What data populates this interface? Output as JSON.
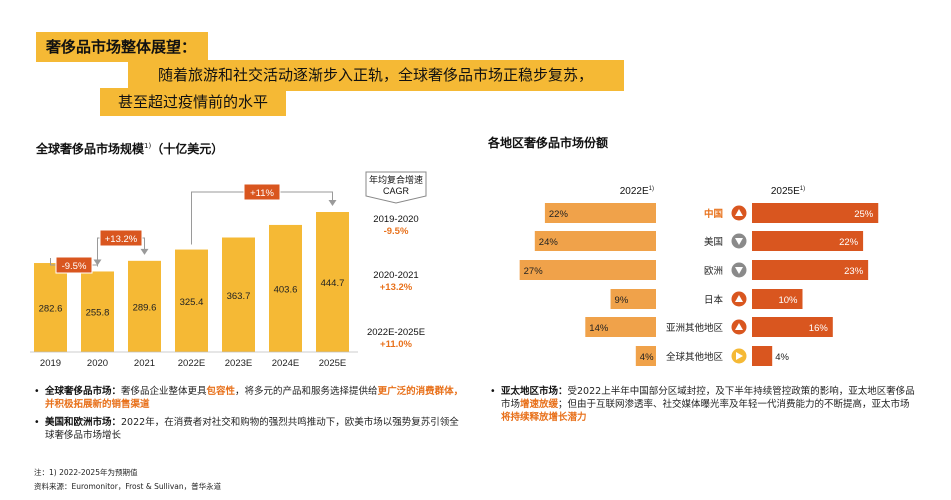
{
  "headline": {
    "title": "奢侈品市场整体展望：",
    "line1": "随着旅游和社交活动逐渐步入正轨，全球奢侈品市场正稳步复苏，",
    "line2": "甚至超过疫情前的水平"
  },
  "left_chart_title": "全球奢侈品市场规模",
  "left_chart_title_sup": "1)",
  "left_chart_title_unit": "（十亿美元）",
  "right_chart_title": "各地区奢侈品市场份额",
  "colors": {
    "bar": "#f5b935",
    "bar_light": "#f0a24a",
    "bar_dark": "#d9561f",
    "accent": "#e8711b",
    "badge": "#d9561f",
    "connector": "#9a9a9a",
    "down": "#8a8a8a",
    "neutral": "#f5b935"
  },
  "chart_data": [
    {
      "type": "bar",
      "categories": [
        "2019",
        "2020",
        "2021",
        "2022E",
        "2023E",
        "2024E",
        "2025E"
      ],
      "values": [
        282.6,
        255.8,
        289.6,
        325.4,
        363.7,
        403.6,
        444.7
      ],
      "title": "全球奢侈品市场规模1)（十亿美元）",
      "ylim": [
        0,
        450
      ],
      "annotations": [
        {
          "from": "2019",
          "to": "2020",
          "label": "-9.5%"
        },
        {
          "from": "2020",
          "to": "2021",
          "label": "+13.2%"
        },
        {
          "from": "2022E",
          "to": "2025E",
          "label": "+11%"
        }
      ],
      "cagr": {
        "header_line1": "年均复合增速",
        "header_line2": "CAGR",
        "items": [
          {
            "period": "2019-2020",
            "value": "-9.5%"
          },
          {
            "period": "2020-2021",
            "value": "+13.2%"
          },
          {
            "period": "2022E-2025E",
            "value": "+11.0%"
          }
        ]
      }
    },
    {
      "type": "bar",
      "categories": [
        "中国",
        "美国",
        "欧洲",
        "日本",
        "亚洲其他地区",
        "全球其他地区"
      ],
      "series": [
        {
          "name": "2022E",
          "header": "2022E",
          "values": [
            22,
            24,
            27,
            9,
            14,
            4
          ]
        },
        {
          "name": "2025E",
          "header": "2025E",
          "values": [
            25,
            22,
            23,
            10,
            16,
            4
          ]
        }
      ],
      "header_sup": "1)",
      "trend": [
        "up",
        "down",
        "down",
        "up",
        "up",
        "neutral"
      ],
      "highlight_category": "中国",
      "title": "各地区奢侈品市场份额",
      "xlim": [
        0,
        30
      ]
    }
  ],
  "left_bullets": [
    {
      "lead": "全球奢侈品市场：",
      "p1": "奢侈品企业整体更具",
      "h1": "包容性",
      "p2": "，将多元的产品和服务选择提供给",
      "h2": "更广泛的消费群体，并积极拓展新的销售渠道"
    },
    {
      "lead": "美国和欧洲市场：",
      "p1": "2022年，在消费者对社交和购物的强烈共鸣推动下，欧美市场以强势复苏引领全球奢侈品市场增长"
    }
  ],
  "right_bullets": [
    {
      "lead": "亚太地区市场：",
      "p1": "受2022上半年中国部分区域封控，及下半年持续管控政策的影响，亚太地区奢侈品市场",
      "h1": "增速放缓",
      "p2": "；但由于互联网渗透率、社交媒体曝光率及年轻一代消费能力的不断提高，亚太市场",
      "h2": "将持续释放增长潜力"
    }
  ],
  "footnote": "注：1) 2022-2025年为预期值",
  "source": "资料来源：Euromonitor，Frost & Sullivan，普华永道"
}
